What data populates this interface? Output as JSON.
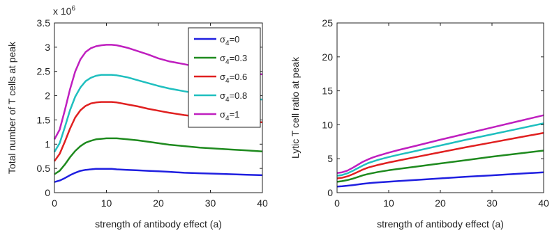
{
  "chart_data": [
    {
      "type": "line",
      "xlabel": "strength of antibody effect (a)",
      "ylabel": "Total number of T cells at peak",
      "y_multiplier": "x 10",
      "y_multiplier_exp": "6",
      "xlim": [
        0,
        40
      ],
      "ylim": [
        0,
        3.5
      ],
      "xticks": [
        "0",
        "10",
        "20",
        "30",
        "40"
      ],
      "yticks": [
        "0",
        "0.5",
        "1",
        "1.5",
        "2",
        "2.5",
        "3",
        "3.5"
      ],
      "grid": false,
      "legend": "top-right",
      "x": [
        0,
        1,
        2,
        3,
        4,
        5,
        6,
        7,
        8,
        9,
        10,
        11,
        12,
        14,
        16,
        18,
        20,
        22,
        25,
        28,
        31,
        34,
        37,
        40
      ],
      "series": [
        {
          "label_base": "σ",
          "label_sub": "4",
          "label_rest": "=0",
          "color": "#1f1fe0",
          "values": [
            0.22,
            0.25,
            0.3,
            0.36,
            0.41,
            0.45,
            0.47,
            0.48,
            0.49,
            0.49,
            0.49,
            0.49,
            0.48,
            0.47,
            0.46,
            0.45,
            0.44,
            0.43,
            0.41,
            0.4,
            0.39,
            0.38,
            0.37,
            0.36
          ]
        },
        {
          "label_base": "σ",
          "label_sub": "4",
          "label_rest": "=0.3",
          "color": "#1e8a1e",
          "values": [
            0.38,
            0.45,
            0.58,
            0.73,
            0.86,
            0.96,
            1.03,
            1.07,
            1.1,
            1.11,
            1.12,
            1.12,
            1.12,
            1.1,
            1.08,
            1.05,
            1.02,
            0.99,
            0.96,
            0.93,
            0.91,
            0.89,
            0.87,
            0.85
          ]
        },
        {
          "label_base": "σ",
          "label_sub": "4",
          "label_rest": "=0.6",
          "color": "#e02020",
          "values": [
            0.65,
            0.8,
            1.05,
            1.32,
            1.55,
            1.7,
            1.79,
            1.84,
            1.86,
            1.87,
            1.87,
            1.87,
            1.86,
            1.82,
            1.78,
            1.73,
            1.69,
            1.65,
            1.6,
            1.56,
            1.52,
            1.49,
            1.47,
            1.45
          ]
        },
        {
          "label_base": "σ",
          "label_sub": "4",
          "label_rest": "=0.8",
          "color": "#1fbfbf",
          "values": [
            0.84,
            1.02,
            1.35,
            1.7,
            1.98,
            2.17,
            2.3,
            2.37,
            2.41,
            2.43,
            2.43,
            2.43,
            2.42,
            2.38,
            2.32,
            2.26,
            2.2,
            2.15,
            2.09,
            2.04,
            2.0,
            1.97,
            1.94,
            1.92
          ]
        },
        {
          "label_base": "σ",
          "label_sub": "4",
          "label_rest": "=1",
          "color": "#bf1fbf",
          "values": [
            1.1,
            1.3,
            1.7,
            2.13,
            2.5,
            2.75,
            2.9,
            2.98,
            3.02,
            3.04,
            3.05,
            3.05,
            3.04,
            2.99,
            2.92,
            2.85,
            2.77,
            2.71,
            2.65,
            2.58,
            2.53,
            2.49,
            2.46,
            2.44
          ]
        }
      ]
    },
    {
      "type": "line",
      "xlabel": "strength of antibody effect (a)",
      "ylabel": "Lytic T cell ratio at peak",
      "xlim": [
        0,
        40
      ],
      "ylim": [
        0,
        25
      ],
      "xticks": [
        "0",
        "10",
        "20",
        "30",
        "40"
      ],
      "yticks": [
        "0",
        "5",
        "10",
        "15",
        "20",
        "25"
      ],
      "grid": false,
      "x": [
        0,
        1,
        2,
        3,
        4,
        5,
        6,
        7,
        8,
        10,
        12,
        15,
        20,
        25,
        30,
        35,
        40
      ],
      "series": [
        {
          "color": "#1f1fe0",
          "values": [
            0.9,
            0.95,
            1.02,
            1.1,
            1.2,
            1.3,
            1.38,
            1.45,
            1.52,
            1.62,
            1.72,
            1.85,
            2.1,
            2.35,
            2.55,
            2.78,
            3.0
          ]
        },
        {
          "color": "#1e8a1e",
          "values": [
            1.6,
            1.7,
            1.85,
            2.05,
            2.3,
            2.55,
            2.75,
            2.9,
            3.05,
            3.3,
            3.5,
            3.8,
            4.3,
            4.8,
            5.3,
            5.75,
            6.2
          ]
        },
        {
          "color": "#e02020",
          "values": [
            2.1,
            2.2,
            2.4,
            2.7,
            3.05,
            3.4,
            3.7,
            3.9,
            4.1,
            4.45,
            4.75,
            5.2,
            5.95,
            6.7,
            7.4,
            8.1,
            8.8
          ]
        },
        {
          "color": "#1fbfbf",
          "values": [
            2.5,
            2.6,
            2.85,
            3.2,
            3.6,
            4.0,
            4.35,
            4.6,
            4.85,
            5.25,
            5.6,
            6.1,
            6.95,
            7.8,
            8.6,
            9.4,
            10.2
          ]
        },
        {
          "color": "#bf1fbf",
          "values": [
            2.9,
            3.0,
            3.25,
            3.65,
            4.1,
            4.55,
            4.9,
            5.2,
            5.45,
            5.9,
            6.3,
            6.85,
            7.8,
            8.7,
            9.6,
            10.5,
            11.4
          ]
        }
      ]
    }
  ]
}
